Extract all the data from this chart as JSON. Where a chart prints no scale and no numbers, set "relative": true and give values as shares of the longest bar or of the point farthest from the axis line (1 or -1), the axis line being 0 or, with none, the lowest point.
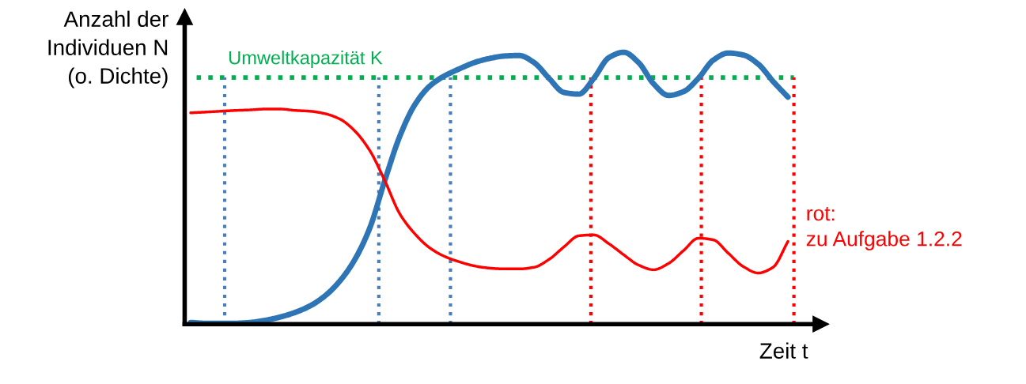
{
  "chart_data": {
    "type": "line",
    "relative": true,
    "xlabel": "Zeit t",
    "ylabel": "Anzahl der\nIndividuen N\n(o. Dichte)",
    "marker": "none",
    "line_style": "solid",
    "categories": [
      null,
      null,
      null,
      null,
      null,
      null,
      null,
      null,
      null,
      null,
      null,
      null,
      null,
      null,
      null,
      null,
      null,
      null,
      null,
      null,
      null,
      null,
      null,
      null,
      null,
      null,
      null,
      null,
      null,
      null,
      null,
      null,
      null,
      null,
      null,
      null,
      null,
      null,
      null,
      null,
      null
    ],
    "series": [
      {
        "color": "#2e75b6",
        "values": [
          0.006,
          0.003,
          0.003,
          0.003,
          0.006,
          0.014,
          0.026,
          0.043,
          0.067,
          0.104,
          0.159,
          0.238,
          0.354,
          0.528,
          0.69,
          0.806,
          0.875,
          0.913,
          0.939,
          0.962,
          0.977,
          0.986,
          0.988,
          0.962,
          0.904,
          0.852,
          0.846,
          0.904,
          0.98,
          1.0,
          0.962,
          0.884,
          0.841,
          0.855,
          0.904,
          0.971,
          0.997,
          0.99,
          0.957,
          0.893,
          0.835
        ]
      },
      {
        "color": "#ff0000",
        "values": [
          0.777,
          0.78,
          0.783,
          0.786,
          0.788,
          0.791,
          0.791,
          0.786,
          0.783,
          0.774,
          0.754,
          0.71,
          0.638,
          0.528,
          0.406,
          0.333,
          0.281,
          0.249,
          0.229,
          0.214,
          0.206,
          0.203,
          0.203,
          0.209,
          0.238,
          0.284,
          0.325,
          0.328,
          0.296,
          0.255,
          0.217,
          0.2,
          0.223,
          0.27,
          0.316,
          0.31,
          0.261,
          0.212,
          0.188,
          0.209,
          0.304
        ]
      }
    ],
    "ref_lines": [
      {
        "axis": "y",
        "value": 0.907,
        "label": "Umweltkapazität K",
        "color": "#00b050",
        "line_style": "dotted"
      }
    ],
    "annotations": [
      "rot:\nzu Aufgabe 1.2.2"
    ]
  }
}
